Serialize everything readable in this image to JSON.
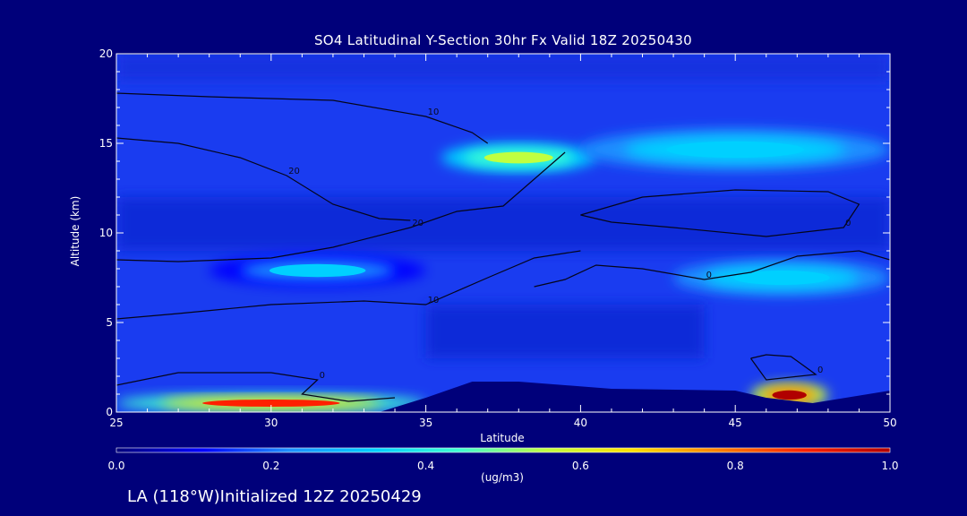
{
  "chart_data": {
    "type": "heatmap",
    "title": "SO4 Latitudinal Y-Section 30hr  Fx Valid 18Z 20250430",
    "xlabel": "Latitude",
    "ylabel": "Altitude (km)",
    "xlim": [
      25,
      50
    ],
    "ylim": [
      0,
      20
    ],
    "x_ticks": [
      25,
      30,
      35,
      40,
      45,
      50
    ],
    "y_ticks": [
      0,
      5,
      10,
      15,
      20
    ],
    "colorbar": {
      "min": 0.0,
      "max": 1.0,
      "ticks": [
        "0.0",
        "0.2",
        "0.4",
        "0.6",
        "0.8",
        "1.0"
      ],
      "unit": "(ug/m3)",
      "colors": [
        "#00007a",
        "#0000ff",
        "#1e90ff",
        "#00d0ff",
        "#40ffd0",
        "#c0ff40",
        "#ffe000",
        "#ff8000",
        "#ff2000",
        "#b00000"
      ]
    },
    "concentration_features": [
      {
        "lat_range": [
          25,
          35
        ],
        "alt_range": [
          0,
          1.0
        ],
        "value": 0.85
      },
      {
        "lat_range": [
          45.5,
          48
        ],
        "alt_range": [
          0.3,
          1.6
        ],
        "value": 0.95
      },
      {
        "lat_range": [
          35.5,
          40.5
        ],
        "alt_range": [
          13.4,
          15.0
        ],
        "value": 0.6
      },
      {
        "lat_range": [
          40,
          50
        ],
        "alt_range": [
          13.5,
          15.8
        ],
        "value": 0.35
      },
      {
        "lat_range": [
          43,
          50
        ],
        "alt_range": [
          6.5,
          8.5
        ],
        "value": 0.35
      },
      {
        "lat_range": [
          28,
          35
        ],
        "alt_range": [
          7,
          8.8
        ],
        "value": 0.28
      }
    ],
    "terrain": [
      {
        "lat": 25,
        "alt": 0
      },
      {
        "lat": 33.5,
        "alt": 0
      },
      {
        "lat": 35,
        "alt": 0.8
      },
      {
        "lat": 36.5,
        "alt": 1.7
      },
      {
        "lat": 38,
        "alt": 1.7
      },
      {
        "lat": 41,
        "alt": 1.3
      },
      {
        "lat": 45,
        "alt": 1.2
      },
      {
        "lat": 46,
        "alt": 0.8
      },
      {
        "lat": 47.5,
        "alt": 0.5
      },
      {
        "lat": 50,
        "alt": 1.2
      }
    ],
    "contours": [
      {
        "label": "0",
        "points": [
          [
            25,
            1.5
          ],
          [
            27,
            2.2
          ],
          [
            30,
            2.2
          ],
          [
            31.5,
            1.8
          ],
          [
            31,
            1.0
          ],
          [
            32.5,
            0.6
          ],
          [
            34,
            0.8
          ]
        ]
      },
      {
        "label": "10",
        "points": [
          [
            25,
            5.2
          ],
          [
            27,
            5.5
          ],
          [
            30,
            6.0
          ],
          [
            33,
            6.2
          ],
          [
            35,
            6.0
          ],
          [
            37,
            7.5
          ],
          [
            38.5,
            8.6
          ],
          [
            40,
            9.0
          ]
        ]
      },
      {
        "label": "20",
        "points": [
          [
            25,
            8.5
          ],
          [
            27,
            8.4
          ],
          [
            30,
            8.6
          ],
          [
            32,
            9.2
          ],
          [
            34.5,
            10.3
          ],
          [
            36,
            11.2
          ],
          [
            37.5,
            11.5
          ],
          [
            38.5,
            13.0
          ],
          [
            39.5,
            14.5
          ]
        ]
      },
      {
        "label": "20",
        "points": [
          [
            25,
            15.3
          ],
          [
            27,
            15.0
          ],
          [
            29,
            14.2
          ],
          [
            30.5,
            13.2
          ],
          [
            32,
            11.6
          ],
          [
            33.5,
            10.8
          ],
          [
            34.5,
            10.7
          ]
        ]
      },
      {
        "label": "10",
        "points": [
          [
            25,
            17.8
          ],
          [
            28,
            17.6
          ],
          [
            32,
            17.4
          ],
          [
            35,
            16.5
          ],
          [
            36.5,
            15.6
          ],
          [
            37,
            15.0
          ]
        ]
      },
      {
        "label": "0",
        "points": [
          [
            25,
            20.0
          ],
          [
            30,
            20.0
          ]
        ]
      },
      {
        "label": "0",
        "points": [
          [
            40,
            11.0
          ],
          [
            42,
            12.0
          ],
          [
            45,
            12.4
          ],
          [
            48,
            12.3
          ],
          [
            49,
            11.6
          ],
          [
            48.5,
            10.3
          ],
          [
            46,
            9.8
          ],
          [
            43,
            10.3
          ],
          [
            41,
            10.6
          ],
          [
            40,
            11.0
          ]
        ]
      },
      {
        "label": "0",
        "points": [
          [
            38.5,
            7.0
          ],
          [
            39.5,
            7.4
          ],
          [
            40.5,
            8.2
          ],
          [
            42,
            8.0
          ],
          [
            44,
            7.4
          ],
          [
            45.5,
            7.8
          ],
          [
            47,
            8.7
          ],
          [
            49,
            9.0
          ],
          [
            50,
            8.5
          ]
        ]
      },
      {
        "label": "0",
        "points": [
          [
            45.5,
            3.0
          ],
          [
            46,
            3.2
          ],
          [
            46.8,
            3.1
          ],
          [
            47.6,
            2.1
          ],
          [
            46,
            1.8
          ],
          [
            45.5,
            3.0
          ]
        ]
      }
    ]
  },
  "footer": {
    "text": "LA (118°W)Initialized 12Z 20250429"
  }
}
